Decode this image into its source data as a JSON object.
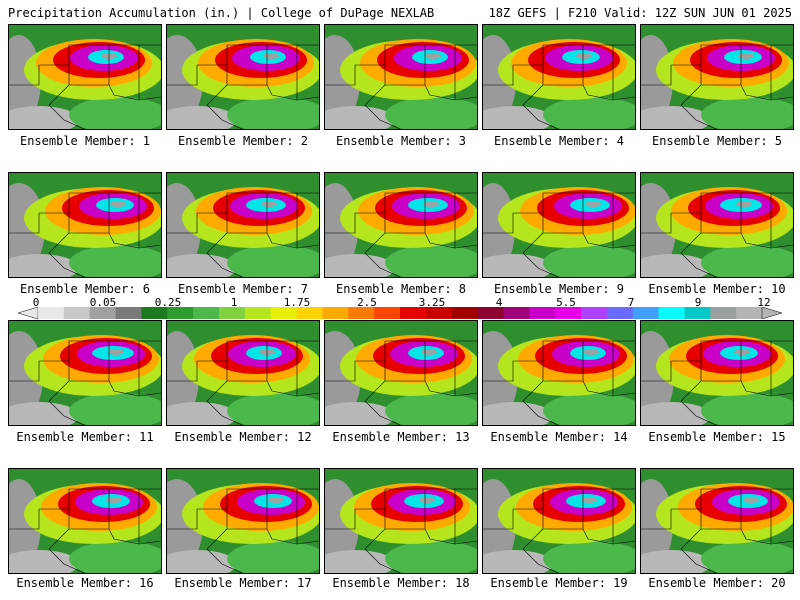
{
  "header": {
    "left_title": "Precipitation Accumulation (in.) | College of DuPage NEXLAB",
    "right_title": "18Z GEFS | F210 Valid: 12Z SUN JUN 01 2025"
  },
  "panels": [
    {
      "label": "Ensemble Member: 1"
    },
    {
      "label": "Ensemble Member: 2"
    },
    {
      "label": "Ensemble Member: 3"
    },
    {
      "label": "Ensemble Member: 4"
    },
    {
      "label": "Ensemble Member: 5"
    },
    {
      "label": "Ensemble Member: 6"
    },
    {
      "label": "Ensemble Member: 7"
    },
    {
      "label": "Ensemble Member: 8"
    },
    {
      "label": "Ensemble Member: 9"
    },
    {
      "label": "Ensemble Member: 10"
    },
    {
      "label": "Ensemble Member: 11"
    },
    {
      "label": "Ensemble Member: 12"
    },
    {
      "label": "Ensemble Member: 13"
    },
    {
      "label": "Ensemble Member: 14"
    },
    {
      "label": "Ensemble Member: 15"
    },
    {
      "label": "Ensemble Member: 16"
    },
    {
      "label": "Ensemble Member: 17"
    },
    {
      "label": "Ensemble Member: 18"
    },
    {
      "label": "Ensemble Member: 19"
    },
    {
      "label": "Ensemble Member: 20"
    }
  ],
  "colorbar": {
    "labels": [
      "0",
      "0.05",
      "0.25",
      "1",
      "1.75",
      "2.5",
      "3.25",
      "4",
      "5.5",
      "7",
      "9",
      "12"
    ],
    "colors": [
      "#e8e8e8",
      "#c8c8c8",
      "#a0a0a0",
      "#7a7a7a",
      "#1f7a1f",
      "#2e9b2e",
      "#4cb84c",
      "#7fd13f",
      "#b5e61d",
      "#e6f000",
      "#ffd200",
      "#ffaa00",
      "#ff7a00",
      "#ff4500",
      "#e60000",
      "#c80000",
      "#a00000",
      "#8b0030",
      "#a0007a",
      "#c800c8",
      "#e600e6",
      "#b040ff",
      "#6a6aff",
      "#40a0ff",
      "#00ffff",
      "#00c8c8",
      "#9aa0a0",
      "#b4b4b4"
    ]
  }
}
